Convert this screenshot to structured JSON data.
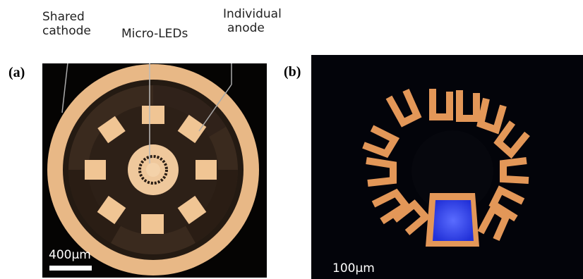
{
  "annotations": {
    "shared_cathode_line1": "Shared",
    "shared_cathode_line2": "cathode",
    "micro_leds": "Micro-LEDs",
    "individual_anode_line1": "Individual",
    "individual_anode_line2": "anode"
  },
  "panels": {
    "a": {
      "label": "(a)",
      "scale_bar": "400μm"
    },
    "b": {
      "label": "(b)",
      "scale_bar": "100μm"
    }
  },
  "colors": {
    "metal_gold": "#e9b27d",
    "dark_background": "#050403",
    "emission_blue": "#3b4cff",
    "orange_contacts": "#e79a5a"
  }
}
